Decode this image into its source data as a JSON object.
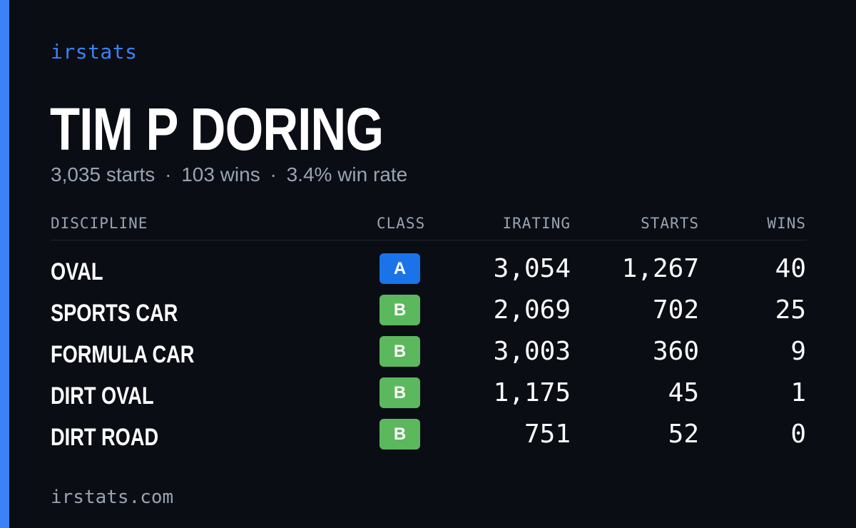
{
  "brand": "irstats",
  "player": {
    "name": "TIM P DORING",
    "starts_text": "3,035 starts",
    "wins_text": "103 wins",
    "win_rate_text": "3.4% win rate",
    "separator": "·"
  },
  "table": {
    "headers": {
      "discipline": "DISCIPLINE",
      "class": "CLASS",
      "irating": "IRATING",
      "starts": "STARTS",
      "wins": "WINS"
    },
    "rows": [
      {
        "discipline": "OVAL",
        "class": "A",
        "class_color": "#1a73e8",
        "irating": "3,054",
        "starts": "1,267",
        "wins": "40"
      },
      {
        "discipline": "SPORTS CAR",
        "class": "B",
        "class_color": "#5cb85c",
        "irating": "2,069",
        "starts": "702",
        "wins": "25"
      },
      {
        "discipline": "FORMULA CAR",
        "class": "B",
        "class_color": "#5cb85c",
        "irating": "3,003",
        "starts": "360",
        "wins": "9"
      },
      {
        "discipline": "DIRT OVAL",
        "class": "B",
        "class_color": "#5cb85c",
        "irating": "1,175",
        "starts": "45",
        "wins": "1"
      },
      {
        "discipline": "DIRT ROAD",
        "class": "B",
        "class_color": "#5cb85c",
        "irating": "751",
        "starts": "52",
        "wins": "0"
      }
    ]
  },
  "footer": "irstats.com",
  "colors": {
    "background": "#0a0d14",
    "accent": "#3b82f6",
    "muted_text": "#9aa3b2",
    "class_a": "#1a73e8",
    "class_b": "#5cb85c"
  }
}
